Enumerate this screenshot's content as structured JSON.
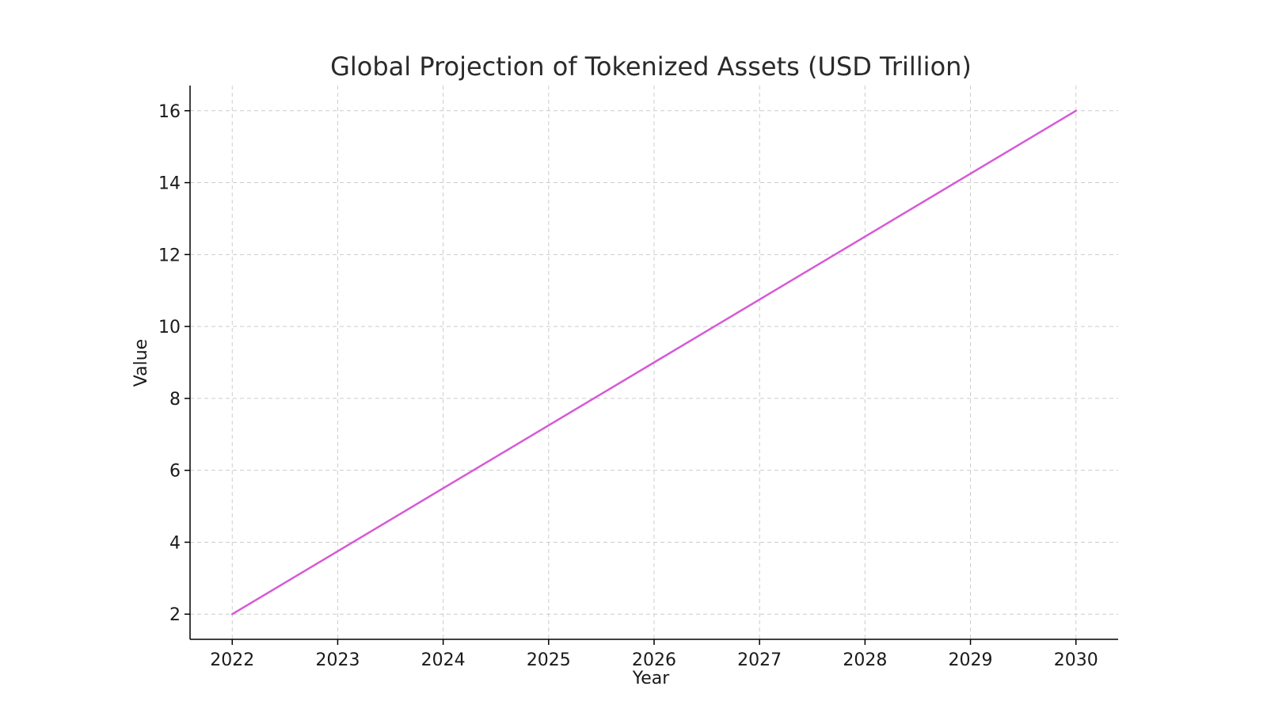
{
  "chart_data": {
    "type": "line",
    "title": "Global Projection of Tokenized Assets (USD Trillion)",
    "xlabel": "Year",
    "ylabel": "Value",
    "x": [
      2022,
      2023,
      2024,
      2025,
      2026,
      2027,
      2028,
      2029,
      2030
    ],
    "series": [
      {
        "values": [
          2,
          3.75,
          5.5,
          7.25,
          9,
          10.75,
          12.5,
          14.25,
          16
        ],
        "color": "#d65ad6"
      }
    ],
    "xlim": [
      2021.6,
      2030.4
    ],
    "ylim": [
      1.3,
      16.7
    ],
    "xticks": [
      2022,
      2023,
      2024,
      2025,
      2026,
      2027,
      2028,
      2029,
      2030
    ],
    "yticks": [
      2,
      4,
      6,
      8,
      10,
      12,
      14,
      16
    ],
    "grid": true,
    "legend": "none"
  }
}
